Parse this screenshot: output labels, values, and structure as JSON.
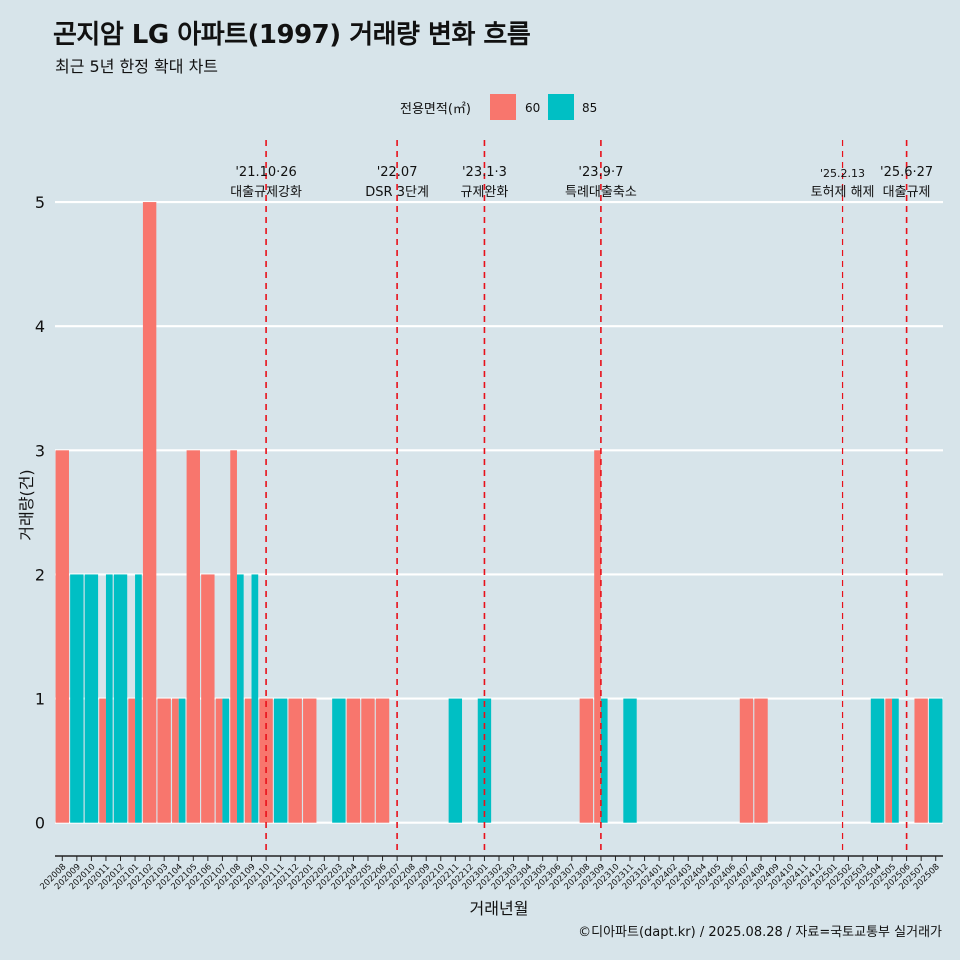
{
  "title": "곤지암 LG 아파트(1997) 거래량 변화 흐름",
  "subtitle": "최근 5년 한정 확대 차트",
  "caption": "©디아파트(dapt.kr) / 2025.08.28 / 자료=국토교통부 실거래가",
  "colors": {
    "s60": "#f8766d",
    "s85": "#00bfc4",
    "vline": "#e8101a",
    "grid": "#ffffff",
    "axis": "#222222"
  },
  "chart_data": {
    "type": "bar",
    "title": "곤지암 LG 아파트(1997) 거래량 변화 흐름",
    "xlabel": "거래년월",
    "ylabel": "거래량(건)",
    "ylim": [
      -0.22,
      5.5
    ],
    "yticks": [
      0,
      1,
      2,
      3,
      4,
      5
    ],
    "legend_title": "전용면적(㎡)",
    "legend_position": "top",
    "categories": [
      "202008",
      "202009",
      "202010",
      "202011",
      "202012",
      "202101",
      "202102",
      "202103",
      "202104",
      "202105",
      "202106",
      "202107",
      "202108",
      "202109",
      "202110",
      "202111",
      "202112",
      "202201",
      "202202",
      "202203",
      "202204",
      "202205",
      "202206",
      "202207",
      "202208",
      "202209",
      "202210",
      "202211",
      "202212",
      "202301",
      "202302",
      "202303",
      "202304",
      "202305",
      "202306",
      "202307",
      "202308",
      "202309",
      "202310",
      "202311",
      "202312",
      "202401",
      "202402",
      "202403",
      "202404",
      "202405",
      "202406",
      "202407",
      "202408",
      "202409",
      "202410",
      "202411",
      "202412",
      "202501",
      "202502",
      "202503",
      "202504",
      "202505",
      "202506",
      "202507",
      "202508"
    ],
    "series": [
      {
        "name": "60",
        "values": [
          3,
          0,
          0,
          1,
          0,
          1,
          5,
          1,
          1,
          3,
          2,
          1,
          3,
          1,
          1,
          0,
          1,
          1,
          0,
          0,
          1,
          1,
          1,
          0,
          0,
          0,
          0,
          0,
          0,
          0,
          0,
          0,
          0,
          0,
          0,
          0,
          1,
          3,
          0,
          0,
          0,
          0,
          0,
          0,
          0,
          0,
          0,
          1,
          1,
          0,
          0,
          0,
          0,
          0,
          0,
          0,
          0,
          1,
          0,
          1,
          0
        ]
      },
      {
        "name": "85",
        "values": [
          0,
          2,
          2,
          2,
          2,
          2,
          0,
          0,
          1,
          0,
          0,
          1,
          2,
          2,
          0,
          1,
          0,
          0,
          0,
          1,
          0,
          0,
          0,
          0,
          0,
          0,
          0,
          1,
          0,
          1,
          0,
          0,
          0,
          0,
          0,
          0,
          0,
          1,
          0,
          1,
          0,
          0,
          0,
          0,
          0,
          0,
          0,
          0,
          0,
          0,
          0,
          0,
          0,
          0,
          0,
          0,
          1,
          1,
          0,
          0,
          1
        ]
      }
    ],
    "events": [
      {
        "date": "'21.10·26",
        "label": "대출규제강화",
        "pos": 14.5
      },
      {
        "date": "'22.07",
        "label": "DSR 3단계",
        "pos": 23.5
      },
      {
        "date": "'23.1·3",
        "label": "규제완화",
        "pos": 29.5
      },
      {
        "date": "'23.9·7",
        "label": "특례대출축소",
        "pos": 37.5
      },
      {
        "date": "'25.2.13",
        "label": "토허제 해제",
        "pos": 54.1
      },
      {
        "date": "'25.6·27",
        "label": "대출규제",
        "pos": 58.5
      }
    ]
  }
}
